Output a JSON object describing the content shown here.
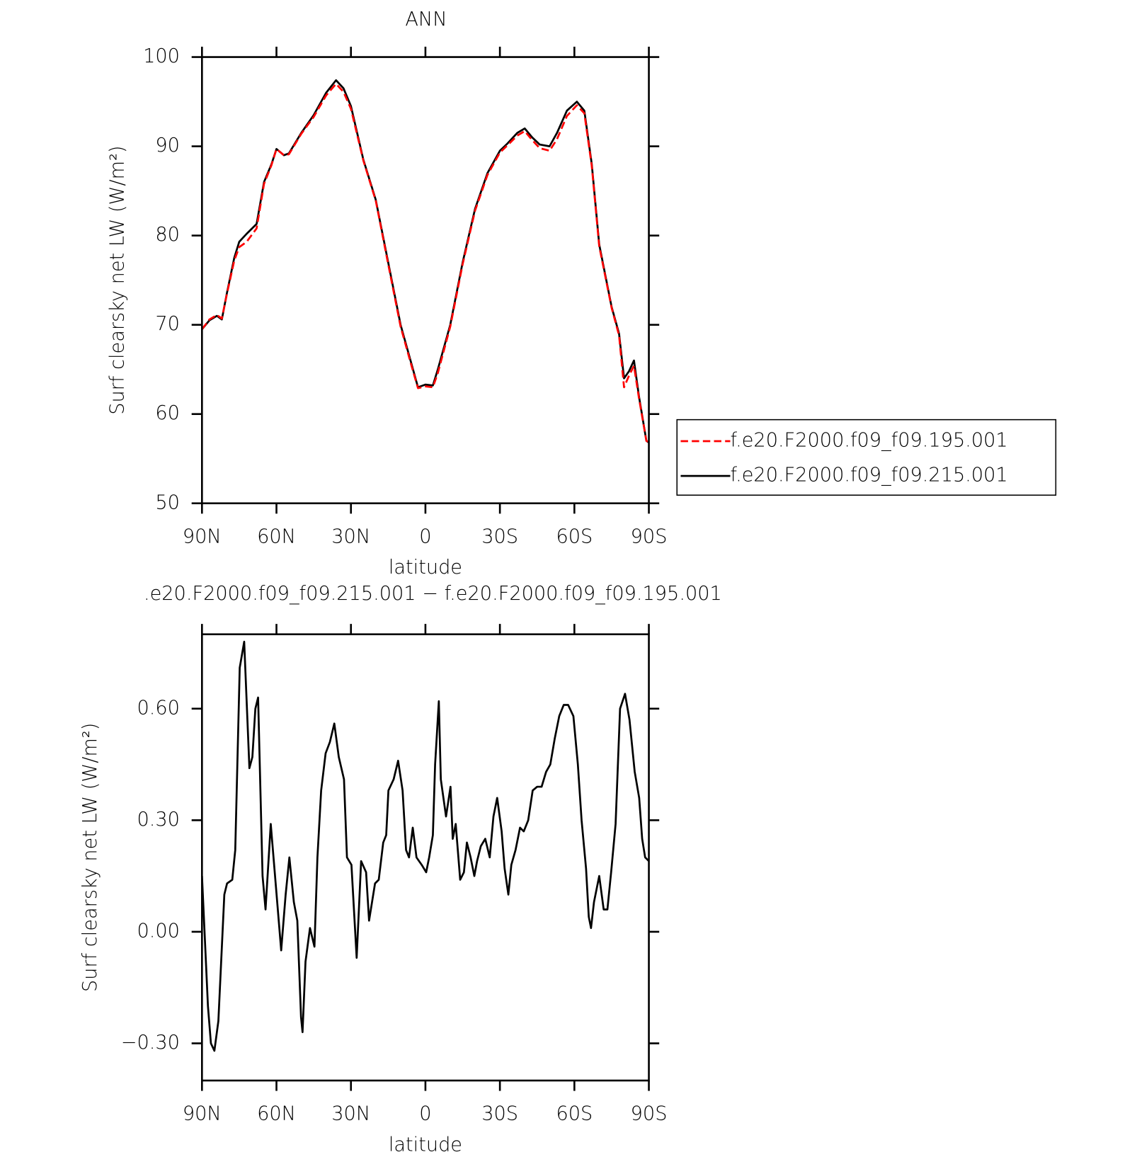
{
  "chart_data": [
    {
      "type": "line",
      "title": "ANN",
      "xlabel": "latitude",
      "ylabel": "Surf clearsky net LW (W/m²)",
      "xlim": [
        90,
        -90
      ],
      "ylim": [
        50,
        100
      ],
      "xticks": [
        {
          "value": 90,
          "label": "90N"
        },
        {
          "value": 60,
          "label": "60N"
        },
        {
          "value": 30,
          "label": "30N"
        },
        0,
        {
          "value": -30,
          "label": "30S"
        },
        {
          "value": -60,
          "label": "60S"
        },
        {
          "value": -90,
          "label": "90S"
        }
      ],
      "yticks": [
        50,
        60,
        70,
        80,
        90,
        100
      ],
      "legend": "right",
      "x": [
        90,
        87,
        84,
        82,
        80,
        77,
        75,
        72,
        68,
        65,
        62,
        60,
        57,
        55,
        50,
        45,
        40,
        36,
        33,
        30,
        25,
        20,
        15,
        10,
        6,
        3,
        0,
        -3,
        -5,
        -10,
        -15,
        -20,
        -25,
        -30,
        -33,
        -37,
        -40,
        -43,
        -46,
        -50,
        -53,
        -57,
        -61,
        -64,
        -67,
        -70,
        -75,
        -78,
        -80,
        -82,
        -84,
        -86,
        -89,
        -90
      ],
      "series": [
        {
          "name": "f.e20.F2000.f09_f09.195.001",
          "color": "#ff0000",
          "linestyle": "dashed",
          "values": [
            69.5,
            70.6,
            71.1,
            70.7,
            73.4,
            77.2,
            78.7,
            79.3,
            80.8,
            85.8,
            87.9,
            89.7,
            89,
            89.1,
            91.4,
            93.3,
            95.7,
            97,
            96.1,
            94.2,
            88.4,
            83.9,
            76.8,
            69.8,
            65.8,
            62.9,
            63.1,
            63,
            64.6,
            69.8,
            76.8,
            82.8,
            86.8,
            89.3,
            90.1,
            91.2,
            91.7,
            90.7,
            89.8,
            89.5,
            90.8,
            93.4,
            94.6,
            93.7,
            87.8,
            78.8,
            71.9,
            68.8,
            63,
            64.3,
            65.4,
            61.8,
            57,
            56.8
          ]
        },
        {
          "name": "f.e20.F2000.f09_f09.215.001",
          "color": "#000000",
          "linestyle": "solid",
          "values": [
            69.5,
            70.5,
            71,
            70.6,
            73.5,
            77.5,
            79.3,
            80.2,
            81.3,
            86,
            88,
            89.7,
            89,
            89.2,
            91.5,
            93.5,
            96,
            97.4,
            96.5,
            94.5,
            88.5,
            84,
            77,
            70,
            66,
            63,
            63.3,
            63.2,
            65,
            70,
            77,
            83,
            87,
            89.5,
            90.3,
            91.5,
            92,
            91,
            90.2,
            90,
            91.5,
            94,
            95,
            94,
            88,
            79,
            72,
            69,
            64,
            64.8,
            66,
            62,
            57,
            56.8
          ]
        }
      ]
    },
    {
      "type": "line",
      "title": ".e20.F2000.f09_f09.215.001 − f.e20.F2000.f09_f09.195.001",
      "xlabel": "latitude",
      "ylabel": "Surf clearsky net LW (W/m²)",
      "xlim": [
        90,
        -90
      ],
      "ylim": [
        -0.4,
        0.8
      ],
      "xticks": [
        {
          "value": 90,
          "label": "90N"
        },
        {
          "value": 60,
          "label": "60N"
        },
        {
          "value": 30,
          "label": "30N"
        },
        0,
        {
          "value": -30,
          "label": "30S"
        },
        {
          "value": -60,
          "label": "60S"
        },
        {
          "value": -90,
          "label": "90S"
        }
      ],
      "yticks": [
        {
          "value": -0.3,
          "label": "−0.30"
        },
        {
          "value": 0,
          "label": "0.00"
        },
        {
          "value": 0.3,
          "label": "0.30"
        },
        {
          "value": 0.6,
          "label": "0.60"
        }
      ],
      "x": [
        90,
        87.6,
        86.4,
        85,
        83.4,
        81,
        79.9,
        77.8,
        76.6,
        74.8,
        73,
        70.9,
        69.7,
        68.5,
        67.4,
        65.6,
        64.4,
        62.3,
        60.2,
        58.1,
        56.3,
        54.8,
        53,
        51.6,
        50.1,
        49.5,
        48.3,
        46.5,
        44.7,
        43.5,
        42,
        40.2,
        38.5,
        36.7,
        34.9,
        32.8,
        31.6,
        29.8,
        27.7,
        25.9,
        23.9,
        22.7,
        20.3,
        18.8,
        17,
        15.8,
        14.9,
        12.8,
        11,
        9.2,
        7.8,
        6.6,
        5.1,
        3.6,
        1.5,
        -0.3,
        -1.5,
        -3,
        -3.9,
        -5.4,
        -6.2,
        -8.3,
        -10.1,
        -11,
        -12.2,
        -14,
        -15.5,
        -16.7,
        -18.2,
        -19.7,
        -20.8,
        -22.3,
        -24.1,
        -25.9,
        -27.4,
        -28.9,
        -30.7,
        -31.9,
        -33.4,
        -34.6,
        -36.3,
        -38.1,
        -39.6,
        -41.4,
        -43.2,
        -45,
        -46.8,
        -48.6,
        -50.3,
        -52.1,
        -53.9,
        -55.7,
        -57.5,
        -59.6,
        -61.4,
        -62.9,
        -64.7,
        -65.8,
        -66.7,
        -67.9,
        -70,
        -71.8,
        -73.3,
        -74.8,
        -76.6,
        -78.4,
        -80.4,
        -82.2,
        -84.3,
        -86.1,
        -87.3,
        -88.5,
        -90
      ],
      "series": [
        {
          "color": "#000000",
          "linestyle": "solid",
          "values": [
            0.15,
            -0.2,
            -0.3,
            -0.32,
            -0.24,
            0.1,
            0.13,
            0.14,
            0.22,
            0.71,
            0.78,
            0.44,
            0.47,
            0.6,
            0.63,
            0.15,
            0.06,
            0.29,
            0.12,
            -0.05,
            0.1,
            0.2,
            0.08,
            0.03,
            -0.23,
            -0.27,
            -0.08,
            0.01,
            -0.04,
            0.2,
            0.38,
            0.48,
            0.51,
            0.56,
            0.47,
            0.41,
            0.2,
            0.18,
            -0.07,
            0.19,
            0.16,
            0.03,
            0.13,
            0.14,
            0.24,
            0.26,
            0.38,
            0.41,
            0.46,
            0.38,
            0.22,
            0.2,
            0.28,
            0.2,
            0.18,
            0.16,
            0.2,
            0.26,
            0.45,
            0.62,
            0.41,
            0.31,
            0.39,
            0.25,
            0.29,
            0.14,
            0.16,
            0.24,
            0.2,
            0.15,
            0.19,
            0.23,
            0.25,
            0.2,
            0.31,
            0.36,
            0.27,
            0.17,
            0.1,
            0.18,
            0.22,
            0.28,
            0.27,
            0.3,
            0.38,
            0.39,
            0.39,
            0.43,
            0.45,
            0.52,
            0.58,
            0.61,
            0.61,
            0.58,
            0.45,
            0.3,
            0.17,
            0.04,
            0.01,
            0.08,
            0.15,
            0.06,
            0.06,
            0.16,
            0.29,
            0.6,
            0.64,
            0.57,
            0.43,
            0.36,
            0.25,
            0.2,
            0.19
          ]
        }
      ]
    }
  ]
}
